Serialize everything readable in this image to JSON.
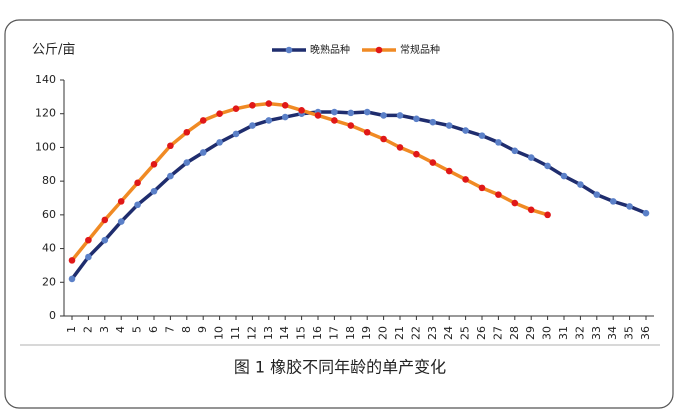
{
  "chart_data": {
    "type": "line",
    "title": "图 1  橡胶不同年龄的单产变化",
    "y_label": "公斤/亩",
    "categories": [
      "1",
      "2",
      "3",
      "4",
      "5",
      "6",
      "7",
      "8",
      "9",
      "10",
      "11",
      "12",
      "13",
      "14",
      "15",
      "16",
      "17",
      "18",
      "19",
      "20",
      "21",
      "22",
      "23",
      "24",
      "25",
      "26",
      "27",
      "28",
      "29",
      "30",
      "31",
      "32",
      "33",
      "34",
      "35",
      "36"
    ],
    "series": [
      {
        "name": "晚熟品种",
        "color": "#1f2d6e",
        "marker_color": "#5b80c8",
        "values": [
          22,
          35,
          45,
          56,
          66,
          74,
          83,
          91,
          97,
          103,
          108,
          113,
          116,
          118,
          120,
          121,
          121,
          120.5,
          121,
          119,
          119,
          117,
          115,
          113,
          110,
          107,
          103,
          98,
          94,
          89,
          83,
          78,
          72,
          68,
          65,
          61
        ]
      },
      {
        "name": "常规品种",
        "color": "#f08a24",
        "marker_color": "#e01818",
        "values": [
          33,
          45,
          57,
          68,
          79,
          90,
          101,
          109,
          116,
          120,
          123,
          125,
          126,
          125,
          122,
          119,
          116,
          113,
          109,
          105,
          100,
          96,
          91,
          86,
          81,
          76,
          72,
          67,
          63,
          60,
          null,
          null,
          null,
          null,
          null,
          null
        ]
      }
    ],
    "ylim": [
      0,
      140
    ],
    "yticks": [
      0,
      20,
      40,
      60,
      80,
      100,
      120,
      140
    ],
    "grid": false,
    "legend": "top"
  }
}
